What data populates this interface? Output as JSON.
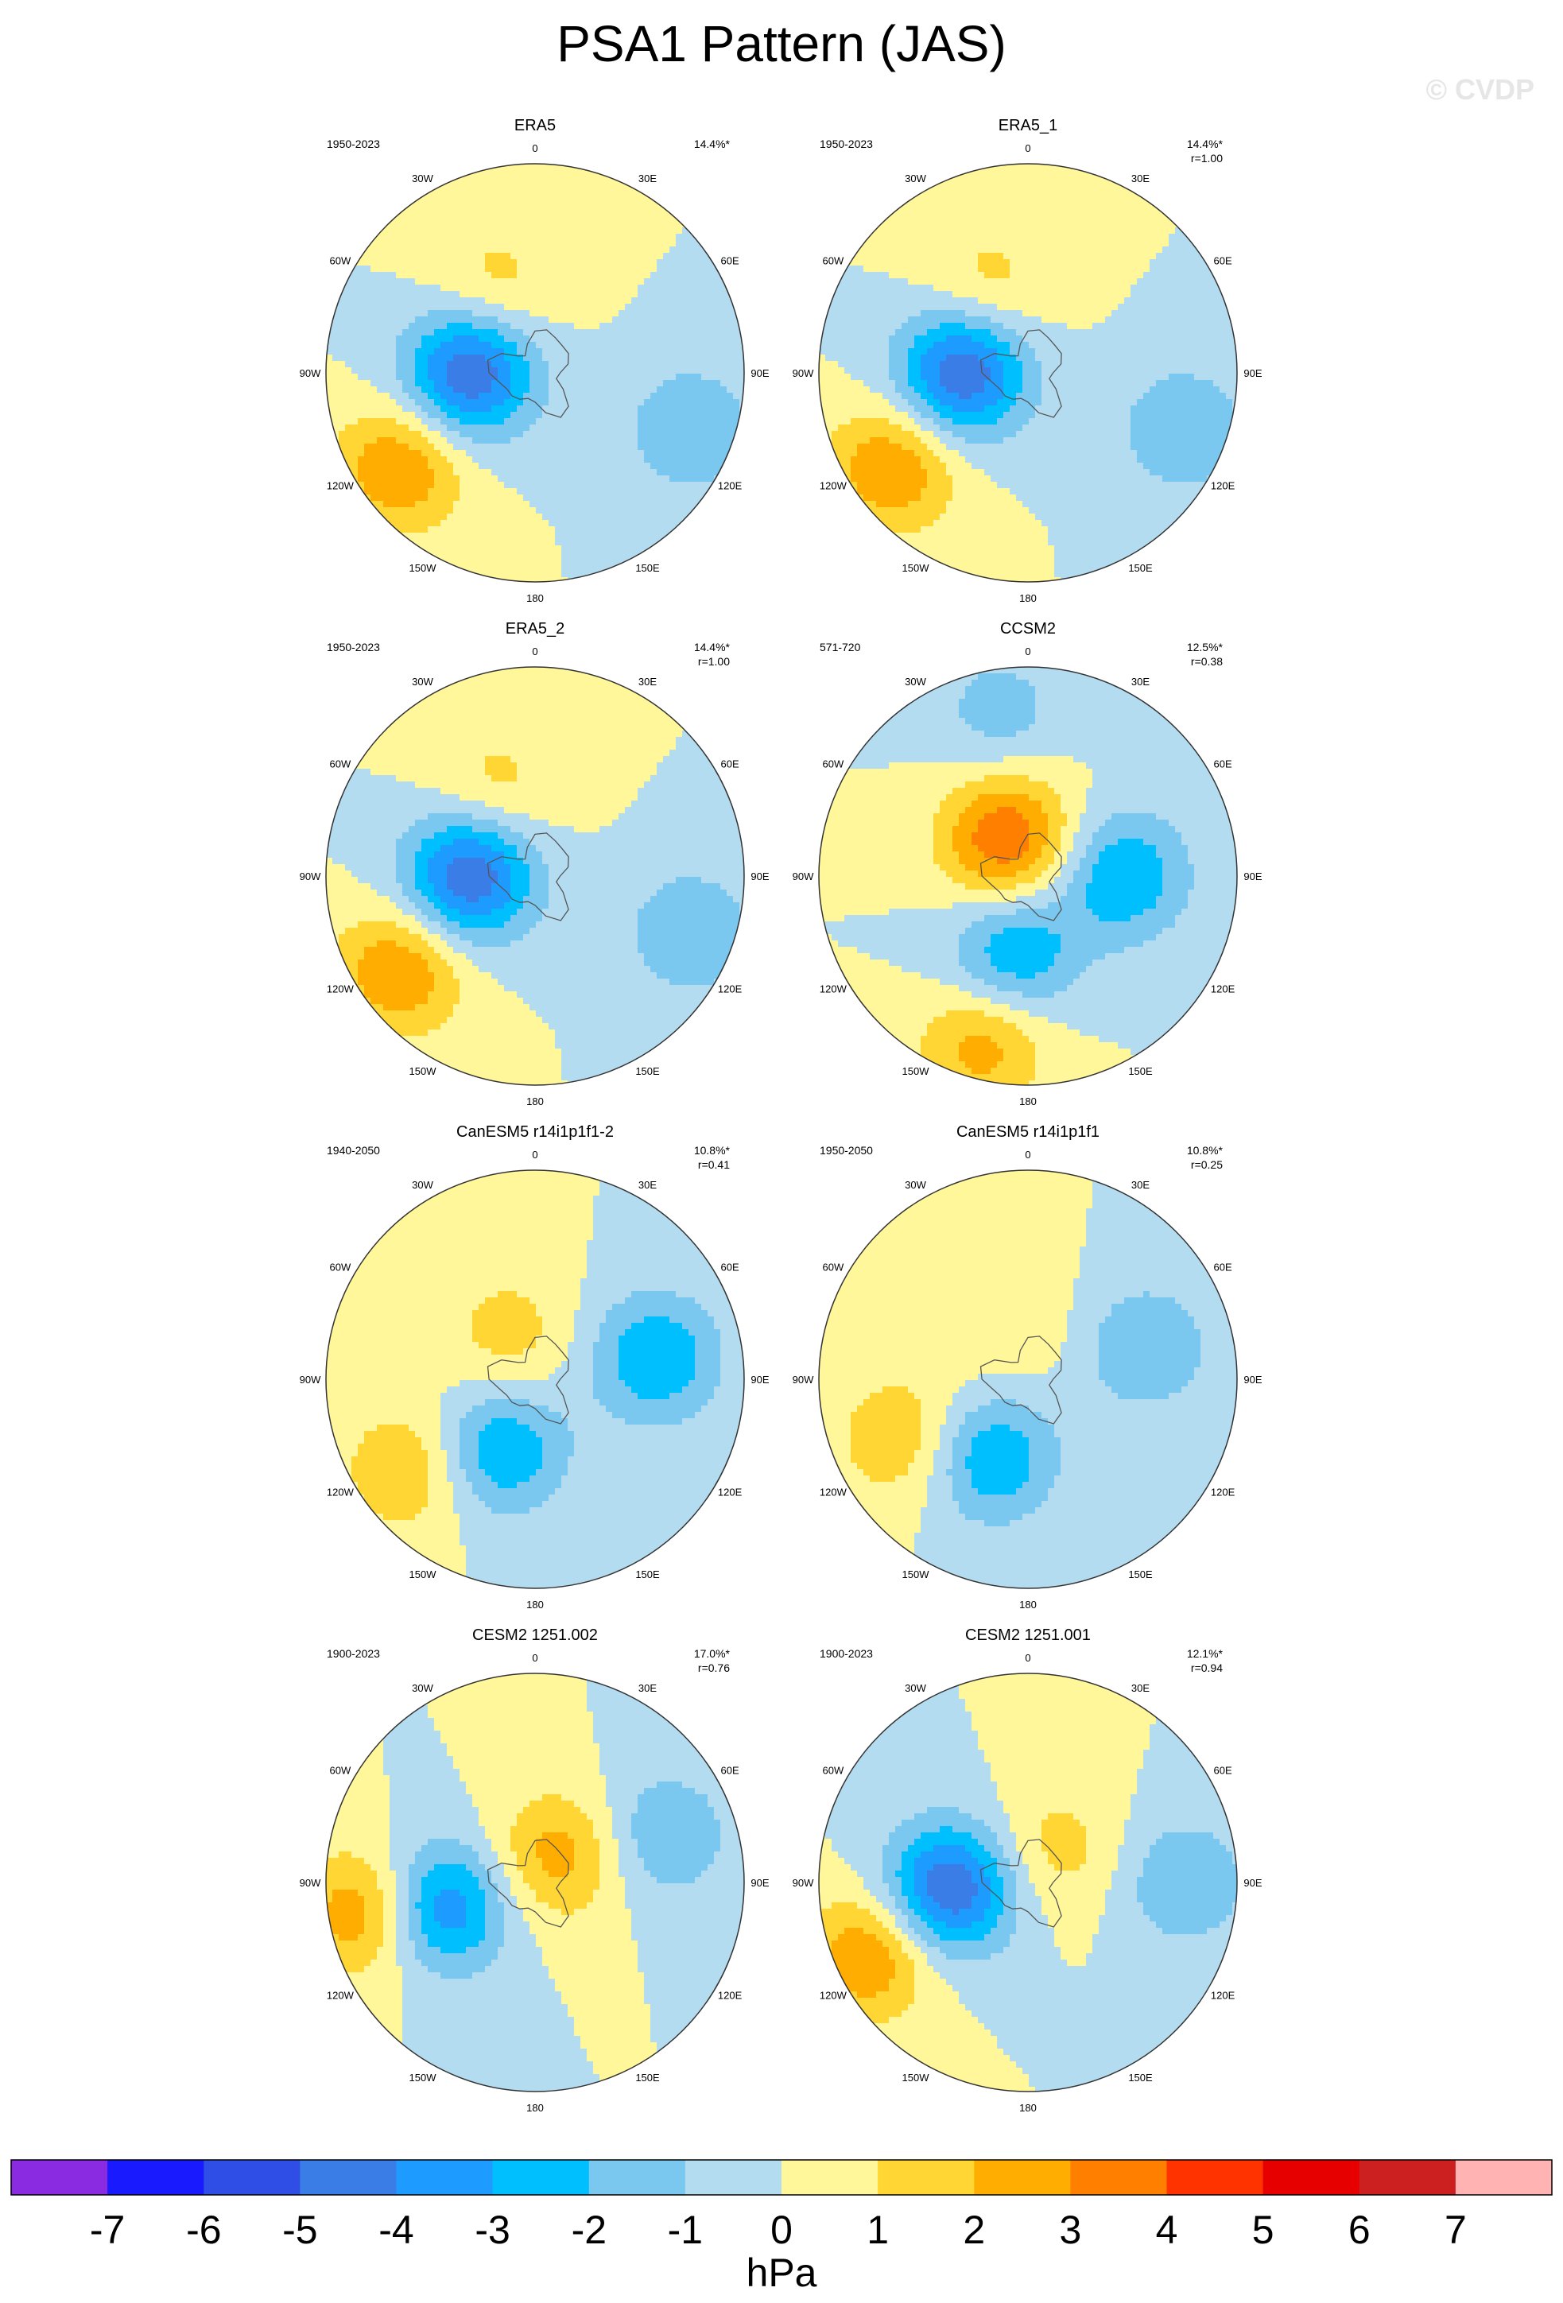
{
  "title": "PSA1 Pattern (JAS)",
  "watermark": "© CVDP",
  "colors": {
    "bins": [
      "#8a2be2",
      "#1a1aff",
      "#2e4ee6",
      "#3b7de6",
      "#1e9bff",
      "#00bfff",
      "#7ac8f0",
      "#b4dcf0",
      "#fff799",
      "#ffd633",
      "#ffad00",
      "#ff7f00",
      "#ff3300",
      "#e60000",
      "#cc2020",
      "#ffb3b3"
    ],
    "land_outline": "#555555",
    "circle_outline": "#333333"
  },
  "lon_labels": [
    "0",
    "30E",
    "60E",
    "90E",
    "120E",
    "150E",
    "180",
    "150W",
    "120W",
    "90W",
    "60W",
    "30W"
  ],
  "colorbar": {
    "ticks": [
      "-7",
      "-6",
      "-5",
      "-4",
      "-3",
      "-2",
      "-1",
      "0",
      "1",
      "2",
      "3",
      "4",
      "5",
      "6",
      "7"
    ],
    "units": "hPa"
  },
  "panels": [
    {
      "name": "ERA5",
      "years": "1950-2023",
      "stats": "14.4%*",
      "r": ""
    },
    {
      "name": "ERA5_1",
      "years": "1950-2023",
      "stats": "14.4%*",
      "r": "r=1.00"
    },
    {
      "name": "ERA5_2",
      "years": "1950-2023",
      "stats": "14.4%*",
      "r": "r=1.00"
    },
    {
      "name": "CCSM2",
      "years": "571-720",
      "stats": "12.5%*",
      "r": "r=0.38"
    },
    {
      "name": "CanESM5 r14i1p1f1-2",
      "years": "1940-2050",
      "stats": "10.8%*",
      "r": "r=0.41"
    },
    {
      "name": "CanESM5 r14i1p1f1",
      "years": "1950-2050",
      "stats": "10.8%*",
      "r": "r=0.25"
    },
    {
      "name": "CESM2 1251.002",
      "years": "1900-2023",
      "stats": "17.0%*",
      "r": "r=0.76"
    },
    {
      "name": "CESM2 1251.001",
      "years": "1900-2023",
      "stats": "12.1%*",
      "r": "r=0.94"
    }
  ],
  "chart_data": {
    "type": "heatmap",
    "description_units": "hPa",
    "colorbar_levels": [
      -7,
      -6,
      -5,
      -4,
      -3,
      -2,
      -1,
      0,
      1,
      2,
      3,
      4,
      5,
      6,
      7
    ],
    "panels": [
      {
        "name": "ERA5",
        "centers": [
          {
            "lon": -90,
            "colat": 15,
            "v": -5
          },
          {
            "lon": -125,
            "colat": 38,
            "v": 3
          },
          {
            "lon": 110,
            "colat": 38,
            "v": -2
          },
          {
            "lon": -25,
            "colat": 22,
            "v": 1.5
          }
        ]
      },
      {
        "name": "ERA5_1",
        "centers": [
          {
            "lon": -90,
            "colat": 15,
            "v": -5
          },
          {
            "lon": -125,
            "colat": 38,
            "v": 3
          },
          {
            "lon": 110,
            "colat": 38,
            "v": -2
          },
          {
            "lon": -25,
            "colat": 22,
            "v": 1.5
          }
        ]
      },
      {
        "name": "ERA5_2",
        "centers": [
          {
            "lon": -90,
            "colat": 15,
            "v": -5
          },
          {
            "lon": -125,
            "colat": 38,
            "v": 3
          },
          {
            "lon": 110,
            "colat": 38,
            "v": -2
          },
          {
            "lon": -25,
            "colat": 22,
            "v": 1.5
          }
        ]
      },
      {
        "name": "CCSM2",
        "centers": [
          {
            "lon": -30,
            "colat": 10,
            "v": 4
          },
          {
            "lon": -170,
            "colat": 18,
            "v": -3
          },
          {
            "lon": 90,
            "colat": 22,
            "v": -3
          },
          {
            "lon": -10,
            "colat": 38,
            "v": -1.5
          },
          {
            "lon": -165,
            "colat": 40,
            "v": 2.5
          }
        ]
      },
      {
        "name": "CanESM5 r14i1p1f1-2",
        "centers": [
          {
            "lon": -155,
            "colat": 18,
            "v": -3
          },
          {
            "lon": 80,
            "colat": 28,
            "v": -3
          },
          {
            "lon": -125,
            "colat": 36,
            "v": 2
          },
          {
            "lon": -30,
            "colat": 12,
            "v": 1.5
          }
        ]
      },
      {
        "name": "CanESM5 r14i1p1f1",
        "centers": [
          {
            "lon": -155,
            "colat": 20,
            "v": -3
          },
          {
            "lon": 75,
            "colat": 28,
            "v": -2
          },
          {
            "lon": -115,
            "colat": 32,
            "v": 2
          },
          {
            "lon": -20,
            "colat": 14,
            "v": 1
          }
        ]
      },
      {
        "name": "CESM2 1251.002",
        "centers": [
          {
            "lon": -105,
            "colat": 22,
            "v": -4
          },
          {
            "lon": 40,
            "colat": 8,
            "v": 2.5
          },
          {
            "lon": 70,
            "colat": 32,
            "v": -2
          },
          {
            "lon": -100,
            "colat": 40,
            "v": 3
          }
        ]
      },
      {
        "name": "CESM2 1251.001",
        "centers": [
          {
            "lon": -95,
            "colat": 18,
            "v": -5
          },
          {
            "lon": 40,
            "colat": 10,
            "v": 1.5
          },
          {
            "lon": 90,
            "colat": 36,
            "v": -2
          },
          {
            "lon": -115,
            "colat": 40,
            "v": 3
          }
        ]
      }
    ]
  }
}
